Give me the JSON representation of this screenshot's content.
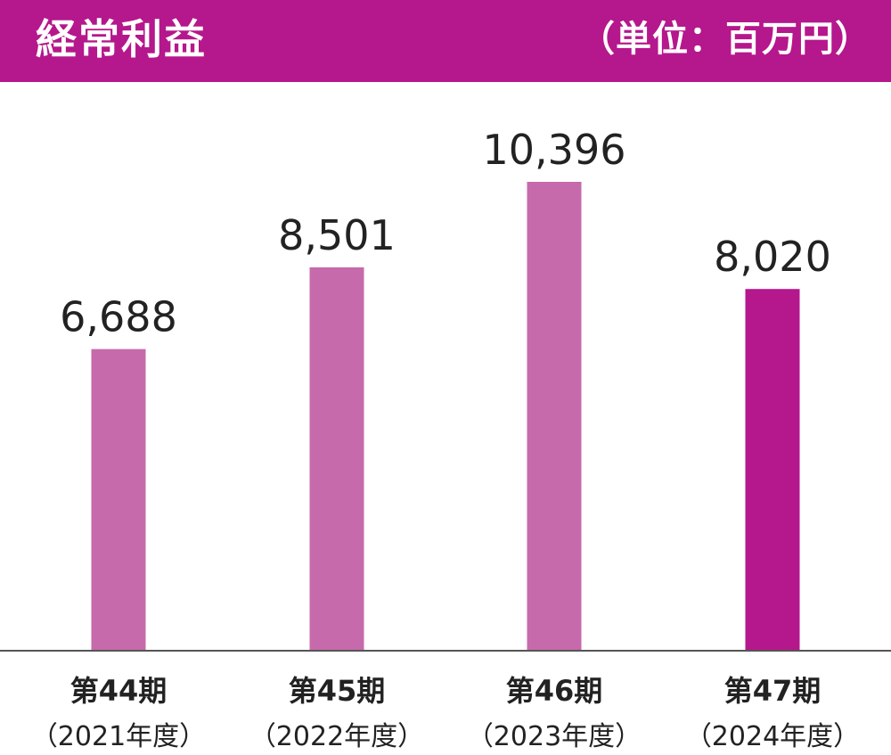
{
  "header": {
    "title": "経常利益",
    "unit": "（単位：百万円）"
  },
  "colors": {
    "header_bg": "#b5178c",
    "bar_past": "#c66aab",
    "bar_current": "#b5178c",
    "axis": "#555555",
    "text": "#222222"
  },
  "chart_data": {
    "type": "bar",
    "categories": [
      {
        "period": "第44期",
        "year": "（2021年度）"
      },
      {
        "period": "第45期",
        "year": "（2022年度）"
      },
      {
        "period": "第46期",
        "year": "（2023年度）"
      },
      {
        "period": "第47期",
        "year": "（2024年度）"
      }
    ],
    "values": [
      6688,
      8501,
      10396,
      8020
    ],
    "value_labels": [
      "6,688",
      "8,501",
      "10,396",
      "8,020"
    ],
    "highlight_index": 3,
    "ylim": [
      0,
      12000
    ],
    "grid": false,
    "legend": "none"
  }
}
